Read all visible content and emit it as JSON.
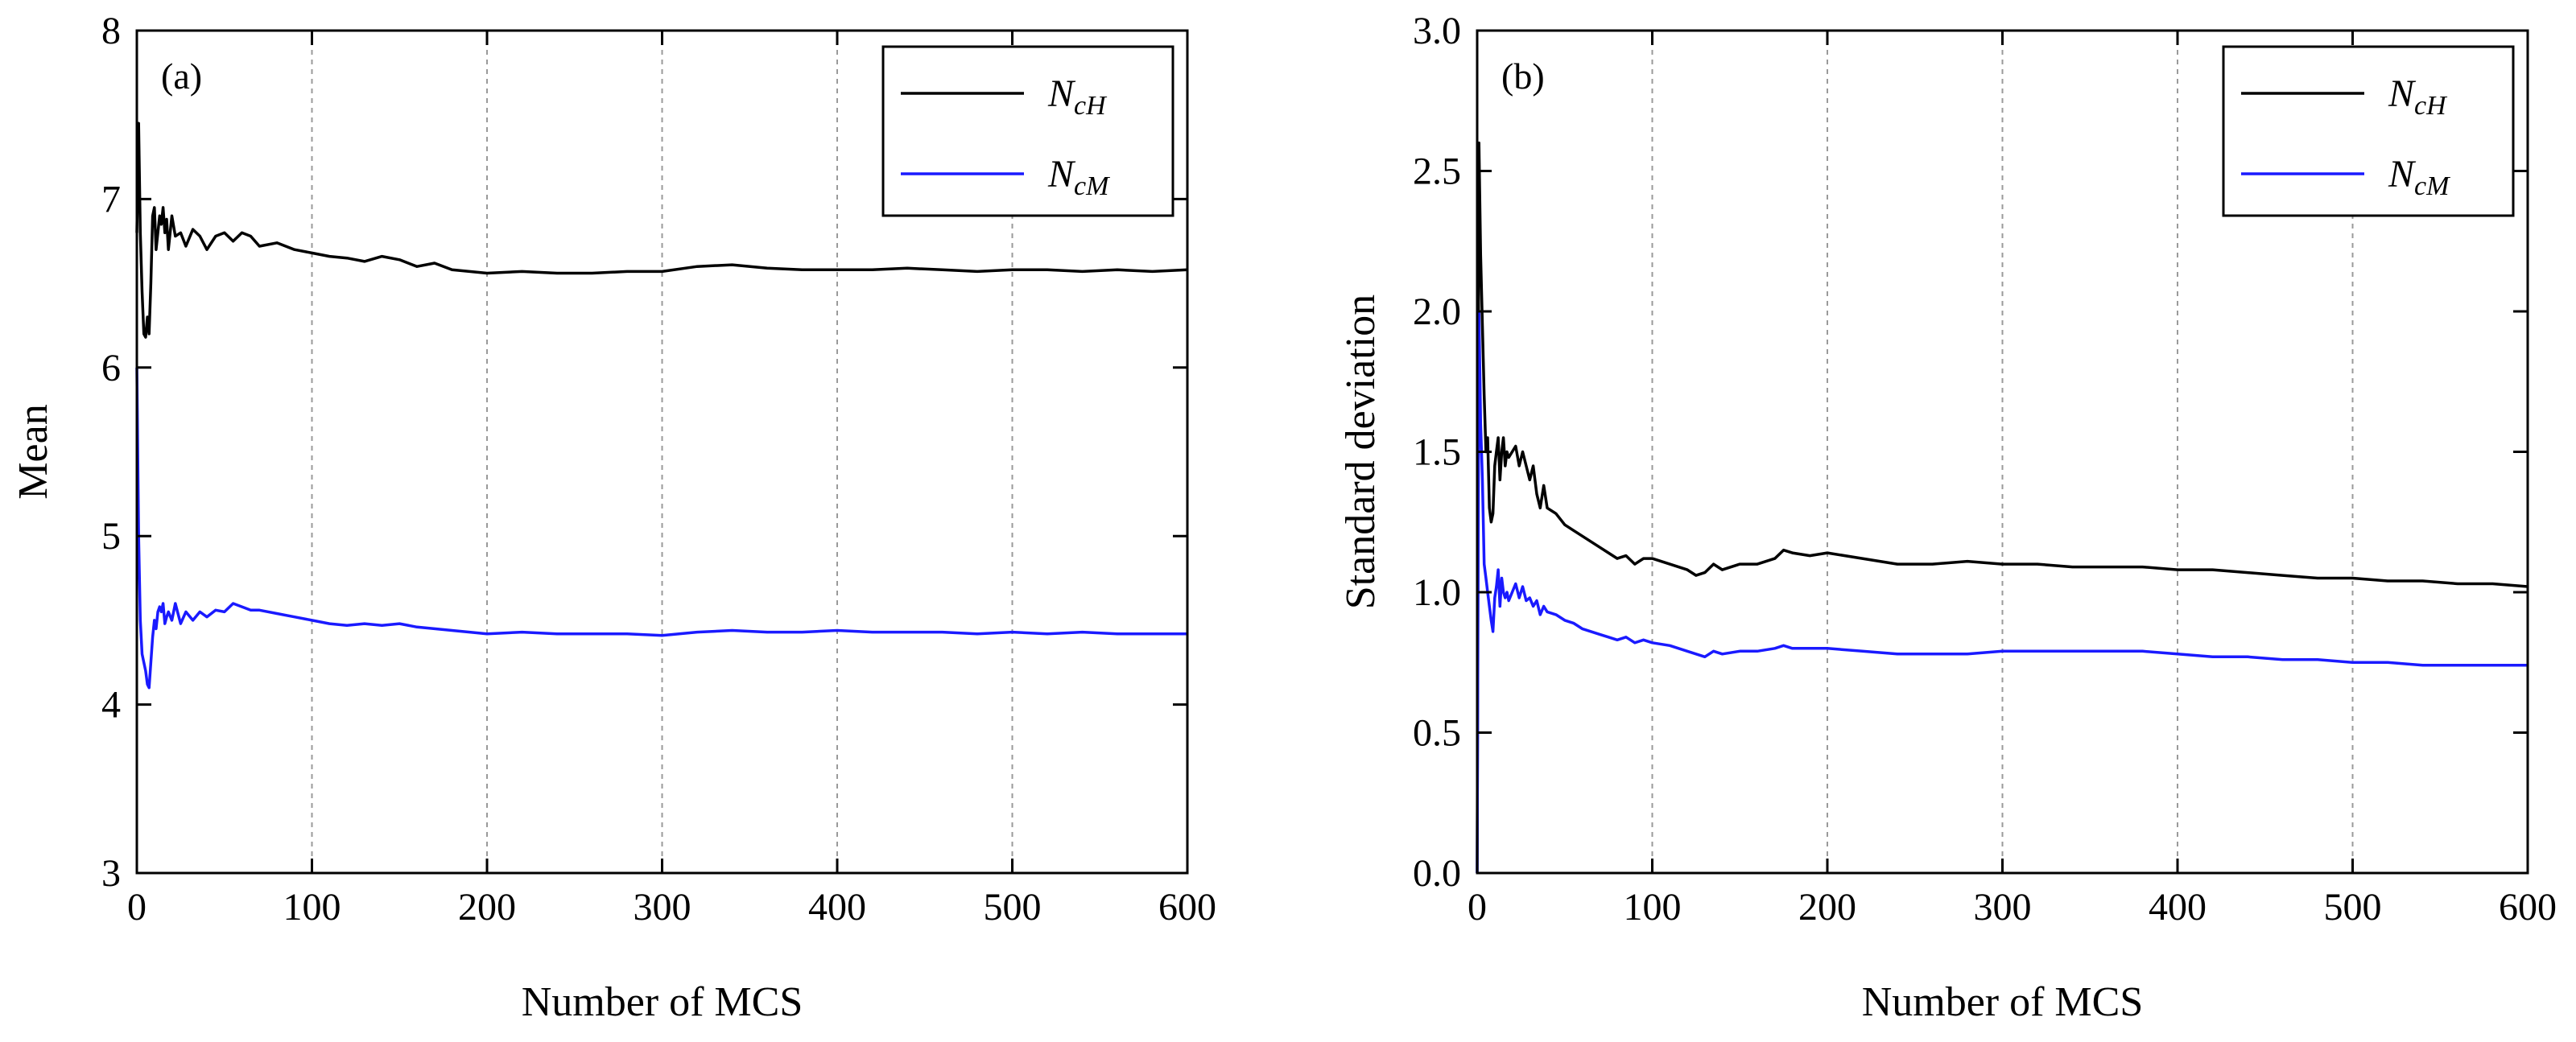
{
  "chart_data": [
    {
      "type": "line",
      "panel_label": "(a)",
      "xlabel": "Number of MCS",
      "ylabel": "Mean",
      "xlim": [
        0,
        600
      ],
      "ylim": [
        3,
        8
      ],
      "xticks": [
        0,
        100,
        200,
        300,
        400,
        500,
        600
      ],
      "xtick_labels": [
        "0",
        "100",
        "200",
        "300",
        "400",
        "500",
        "600"
      ],
      "yticks": [
        3,
        4,
        5,
        6,
        7,
        8
      ],
      "ytick_labels": [
        "3",
        "4",
        "5",
        "6",
        "7",
        "8"
      ],
      "grid": "vertical dashed at x ticks",
      "legend_position": "top-right",
      "series": [
        {
          "name": "NcH",
          "legend_main": "N",
          "legend_sub": "cH",
          "color": "#000000",
          "x": [
            0,
            1,
            2,
            3,
            4,
            5,
            6,
            7,
            8,
            9,
            10,
            11,
            12,
            13,
            14,
            15,
            16,
            17,
            18,
            20,
            22,
            25,
            28,
            32,
            36,
            40,
            45,
            50,
            55,
            60,
            65,
            70,
            80,
            90,
            100,
            110,
            120,
            130,
            140,
            150,
            160,
            170,
            180,
            190,
            200,
            220,
            240,
            260,
            280,
            300,
            320,
            340,
            360,
            380,
            400,
            420,
            440,
            460,
            480,
            500,
            520,
            540,
            560,
            580,
            600
          ],
          "y": [
            6.8,
            7.45,
            6.8,
            6.45,
            6.2,
            6.18,
            6.3,
            6.2,
            6.5,
            6.9,
            6.95,
            6.7,
            6.8,
            6.9,
            6.85,
            6.95,
            6.8,
            6.88,
            6.7,
            6.9,
            6.78,
            6.8,
            6.72,
            6.82,
            6.78,
            6.7,
            6.78,
            6.8,
            6.75,
            6.8,
            6.78,
            6.72,
            6.74,
            6.7,
            6.68,
            6.66,
            6.65,
            6.63,
            6.66,
            6.64,
            6.6,
            6.62,
            6.58,
            6.57,
            6.56,
            6.57,
            6.56,
            6.56,
            6.57,
            6.57,
            6.6,
            6.61,
            6.59,
            6.58,
            6.58,
            6.58,
            6.59,
            6.58,
            6.57,
            6.58,
            6.58,
            6.57,
            6.58,
            6.57,
            6.58
          ]
        },
        {
          "name": "NcM",
          "legend_main": "N",
          "legend_sub": "cM",
          "color": "#1a1aff",
          "x": [
            0,
            1,
            2,
            3,
            4,
            5,
            6,
            7,
            8,
            9,
            10,
            11,
            12,
            13,
            14,
            15,
            16,
            17,
            18,
            20,
            22,
            25,
            28,
            32,
            36,
            40,
            45,
            50,
            55,
            60,
            65,
            70,
            80,
            90,
            100,
            110,
            120,
            130,
            140,
            150,
            160,
            170,
            180,
            190,
            200,
            220,
            240,
            260,
            280,
            300,
            320,
            340,
            360,
            380,
            400,
            420,
            440,
            460,
            480,
            500,
            520,
            540,
            560,
            580,
            600
          ],
          "y": [
            6.0,
            5.0,
            4.5,
            4.3,
            4.25,
            4.2,
            4.12,
            4.1,
            4.25,
            4.4,
            4.5,
            4.45,
            4.55,
            4.58,
            4.55,
            4.6,
            4.48,
            4.52,
            4.55,
            4.5,
            4.6,
            4.48,
            4.55,
            4.5,
            4.55,
            4.52,
            4.56,
            4.55,
            4.6,
            4.58,
            4.56,
            4.56,
            4.54,
            4.52,
            4.5,
            4.48,
            4.47,
            4.48,
            4.47,
            4.48,
            4.46,
            4.45,
            4.44,
            4.43,
            4.42,
            4.43,
            4.42,
            4.42,
            4.42,
            4.41,
            4.43,
            4.44,
            4.43,
            4.43,
            4.44,
            4.43,
            4.43,
            4.43,
            4.42,
            4.43,
            4.42,
            4.43,
            4.42,
            4.42,
            4.42
          ]
        }
      ]
    },
    {
      "type": "line",
      "panel_label": "(b)",
      "xlabel": "Number of MCS",
      "ylabel": "Standard deviation",
      "xlim": [
        0,
        600
      ],
      "ylim": [
        0,
        3
      ],
      "xticks": [
        0,
        100,
        200,
        300,
        400,
        500,
        600
      ],
      "xtick_labels": [
        "0",
        "100",
        "200",
        "300",
        "400",
        "500",
        "600"
      ],
      "yticks": [
        0,
        0.5,
        1.0,
        1.5,
        2.0,
        2.5,
        3.0
      ],
      "ytick_labels": [
        "0.0",
        "0.5",
        "1.0",
        "1.5",
        "2.0",
        "2.5",
        "3.0"
      ],
      "grid": "vertical dashed at x ticks",
      "legend_position": "top-right",
      "series": [
        {
          "name": "NcH",
          "legend_main": "N",
          "legend_sub": "cH",
          "color": "#000000",
          "x": [
            0,
            1,
            2,
            3,
            4,
            5,
            6,
            7,
            8,
            9,
            10,
            11,
            12,
            13,
            14,
            15,
            16,
            17,
            18,
            20,
            22,
            24,
            26,
            28,
            30,
            32,
            34,
            36,
            38,
            40,
            45,
            50,
            55,
            60,
            65,
            70,
            75,
            80,
            85,
            90,
            95,
            100,
            110,
            120,
            125,
            130,
            135,
            140,
            150,
            160,
            170,
            175,
            180,
            190,
            200,
            220,
            240,
            260,
            280,
            300,
            320,
            340,
            360,
            380,
            400,
            420,
            440,
            460,
            480,
            500,
            520,
            540,
            560,
            580,
            600
          ],
          "y": [
            0.0,
            2.6,
            2.2,
            1.95,
            1.7,
            1.5,
            1.55,
            1.3,
            1.25,
            1.28,
            1.45,
            1.5,
            1.55,
            1.4,
            1.5,
            1.55,
            1.45,
            1.5,
            1.48,
            1.5,
            1.52,
            1.45,
            1.5,
            1.45,
            1.4,
            1.45,
            1.35,
            1.3,
            1.38,
            1.3,
            1.28,
            1.24,
            1.22,
            1.2,
            1.18,
            1.16,
            1.14,
            1.12,
            1.13,
            1.1,
            1.12,
            1.12,
            1.1,
            1.08,
            1.06,
            1.07,
            1.1,
            1.08,
            1.1,
            1.1,
            1.12,
            1.15,
            1.14,
            1.13,
            1.14,
            1.12,
            1.1,
            1.1,
            1.11,
            1.1,
            1.1,
            1.09,
            1.09,
            1.09,
            1.08,
            1.08,
            1.07,
            1.06,
            1.05,
            1.05,
            1.04,
            1.04,
            1.03,
            1.03,
            1.02
          ]
        },
        {
          "name": "NcM",
          "legend_main": "N",
          "legend_sub": "cM",
          "color": "#1a1aff",
          "x": [
            0,
            1,
            2,
            3,
            4,
            5,
            6,
            7,
            8,
            9,
            10,
            11,
            12,
            13,
            14,
            15,
            16,
            17,
            18,
            20,
            22,
            24,
            26,
            28,
            30,
            32,
            34,
            36,
            38,
            40,
            45,
            50,
            55,
            60,
            65,
            70,
            75,
            80,
            85,
            90,
            95,
            100,
            110,
            120,
            125,
            130,
            135,
            140,
            150,
            160,
            170,
            175,
            180,
            190,
            200,
            220,
            240,
            260,
            280,
            300,
            320,
            340,
            360,
            380,
            400,
            420,
            440,
            460,
            480,
            500,
            520,
            540,
            560,
            580,
            600
          ],
          "y": [
            0.0,
            2.0,
            1.6,
            1.4,
            1.1,
            1.05,
            1.0,
            0.95,
            0.9,
            0.86,
            0.98,
            1.02,
            1.08,
            0.95,
            1.05,
            1.0,
            0.98,
            1.0,
            0.97,
            1.0,
            1.03,
            0.98,
            1.02,
            0.97,
            0.98,
            0.95,
            0.97,
            0.92,
            0.95,
            0.93,
            0.92,
            0.9,
            0.89,
            0.87,
            0.86,
            0.85,
            0.84,
            0.83,
            0.84,
            0.82,
            0.83,
            0.82,
            0.81,
            0.79,
            0.78,
            0.77,
            0.79,
            0.78,
            0.79,
            0.79,
            0.8,
            0.81,
            0.8,
            0.8,
            0.8,
            0.79,
            0.78,
            0.78,
            0.78,
            0.79,
            0.79,
            0.79,
            0.79,
            0.79,
            0.78,
            0.77,
            0.77,
            0.76,
            0.76,
            0.75,
            0.75,
            0.74,
            0.74,
            0.74,
            0.74
          ]
        }
      ]
    }
  ]
}
